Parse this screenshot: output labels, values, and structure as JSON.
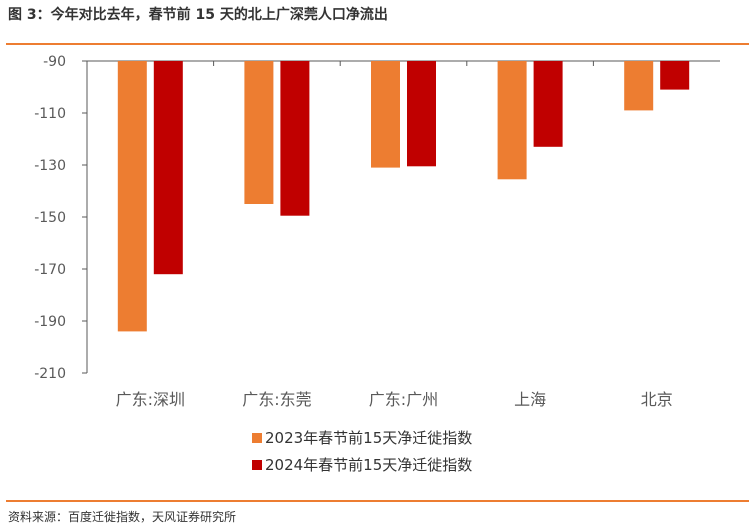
{
  "title": "图 3：今年对比去年，春节前 15 天的北上广深莞人口净流出",
  "source": "资料来源：百度迁徙指数，天风证券研究所",
  "chart_data": {
    "type": "bar",
    "title": "",
    "xlabel": "",
    "ylabel": "",
    "categories": [
      "广东:深圳",
      "广东:东莞",
      "广东:广州",
      "上海",
      "北京"
    ],
    "series": [
      {
        "name": "2023年春节前15天净迁徙指数",
        "color": "#ED7D31",
        "values": [
          -194,
          -145,
          -131,
          -135.5,
          -109
        ]
      },
      {
        "name": "2024年春节前15天净迁徙指数",
        "color": "#C00000",
        "values": [
          -172,
          -149.5,
          -130.5,
          -123,
          -101
        ]
      }
    ],
    "ylim": [
      -210,
      -90
    ],
    "yticks": [
      -90,
      -110,
      -130,
      -150,
      -170,
      -190,
      -210
    ],
    "ytick_labels": [
      "-90",
      "-110",
      "-130",
      "-150",
      "-170",
      "-190",
      "-210"
    ],
    "bar_baseline": -90,
    "grid": false,
    "legend_position": "bottom"
  }
}
